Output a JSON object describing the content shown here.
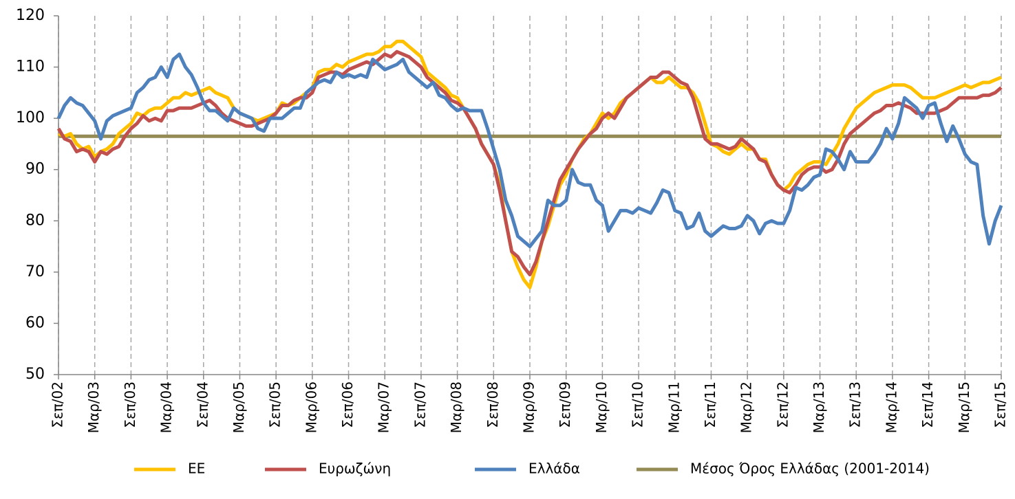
{
  "chart_data": {
    "type": "line",
    "categories": [
      "Σεπ/02",
      null,
      null,
      null,
      null,
      null,
      "Μαρ/03",
      null,
      null,
      null,
      null,
      null,
      "Σεπ/03",
      null,
      null,
      null,
      null,
      null,
      "Μαρ/04",
      null,
      null,
      null,
      null,
      null,
      "Σεπ/04",
      null,
      null,
      null,
      null,
      null,
      "Μαρ/05",
      null,
      null,
      null,
      null,
      null,
      "Σεπ/05",
      null,
      null,
      null,
      null,
      null,
      "Μαρ/06",
      null,
      null,
      null,
      null,
      null,
      "Σεπ/06",
      null,
      null,
      null,
      null,
      null,
      "Μαρ/07",
      null,
      null,
      null,
      null,
      null,
      "Σεπ/07",
      null,
      null,
      null,
      null,
      null,
      "Μαρ/08",
      null,
      null,
      null,
      null,
      null,
      "Σεπ/08",
      null,
      null,
      null,
      null,
      null,
      "Μαρ/09",
      null,
      null,
      null,
      null,
      null,
      "Σεπ/09",
      null,
      null,
      null,
      null,
      null,
      "Μαρ/10",
      null,
      null,
      null,
      null,
      null,
      "Σεπ/10",
      null,
      null,
      null,
      null,
      null,
      "Μαρ/11",
      null,
      null,
      null,
      null,
      null,
      "Σεπ/11",
      null,
      null,
      null,
      null,
      null,
      "Μαρ/12",
      null,
      null,
      null,
      null,
      null,
      "Σεπ/12",
      null,
      null,
      null,
      null,
      null,
      "Μαρ/13",
      null,
      null,
      null,
      null,
      null,
      "Σεπ/13",
      null,
      null,
      null,
      null,
      null,
      "Μαρ/14",
      null,
      null,
      null,
      null,
      null,
      "Σεπ/14",
      null,
      null,
      null,
      null,
      null,
      "Μαρ/15",
      null,
      null,
      null,
      null,
      null,
      "Σεπ/15"
    ],
    "series": [
      {
        "name": "ΕΕ",
        "color": "#FFC000",
        "values": [
          97,
          96.5,
          97,
          95,
          94,
          94.5,
          92.5,
          93.5,
          94,
          95,
          97,
          98,
          99,
          101,
          100.5,
          101.5,
          102,
          102,
          103,
          104,
          104,
          105,
          104.5,
          105,
          105.5,
          106,
          105,
          104.5,
          104,
          102,
          101,
          100.5,
          100,
          99.5,
          100,
          100.5,
          101,
          103,
          102.5,
          103,
          104,
          105,
          106,
          109,
          109.5,
          109.5,
          110.5,
          110,
          111,
          111.5,
          112,
          112.5,
          112.5,
          113,
          114,
          114,
          115,
          115,
          114,
          113,
          112,
          109,
          108,
          107,
          106,
          104.5,
          104,
          102,
          100,
          98,
          95,
          93,
          91,
          87,
          80,
          74,
          71,
          68.5,
          67,
          71,
          76,
          79,
          83,
          87,
          89,
          92,
          94,
          96,
          97,
          99,
          101,
          100,
          101,
          103,
          104,
          105,
          106,
          107,
          108,
          107,
          107,
          108,
          107,
          106,
          106,
          105,
          103,
          99,
          95,
          94.5,
          93.5,
          93,
          94,
          95,
          94,
          94,
          92,
          92,
          89,
          87,
          86,
          87,
          89,
          90,
          91,
          91.5,
          91.5,
          91,
          93,
          95,
          98,
          100,
          102,
          103,
          104,
          105,
          105.5,
          106,
          106.5,
          106.5,
          106.5,
          106,
          105,
          104,
          104,
          104,
          104.5,
          105,
          105.5,
          106,
          106.5,
          106,
          106.5,
          107,
          107,
          107.5,
          108
        ]
      },
      {
        "name": "Ευρωζώνη",
        "color": "#C0504D",
        "values": [
          98,
          96,
          95.5,
          93.5,
          94,
          93.5,
          91.5,
          93.5,
          93,
          94,
          94.5,
          96.5,
          98,
          99,
          100.5,
          99.5,
          100,
          99.5,
          101.5,
          101.5,
          102,
          102,
          102,
          102.5,
          103,
          103.5,
          102.5,
          101,
          100,
          99.5,
          99,
          98.5,
          98.5,
          99,
          99.5,
          100,
          101,
          102.5,
          102.5,
          103.5,
          104,
          104,
          105,
          108,
          108.5,
          109,
          109,
          108.5,
          109.5,
          110,
          110.5,
          111,
          110.5,
          111.5,
          112.5,
          112,
          113,
          112.5,
          112,
          111,
          110,
          108,
          107,
          106,
          105,
          103.5,
          103,
          102,
          100,
          98,
          95,
          93,
          91,
          86,
          80,
          74,
          73,
          71,
          69.5,
          72,
          76,
          80,
          84,
          88,
          90,
          92,
          94,
          95.5,
          97,
          98,
          100,
          101,
          100,
          102,
          104,
          105,
          106,
          107,
          108,
          108,
          109,
          109,
          108,
          107,
          106.5,
          104,
          100,
          96,
          95,
          95,
          94.5,
          94,
          94.5,
          96,
          95,
          94,
          92,
          91.5,
          89,
          87,
          86,
          85.5,
          87,
          89,
          90,
          90.5,
          90.5,
          89.5,
          90,
          92,
          95,
          97,
          98,
          99,
          100,
          101,
          101.5,
          102.5,
          102.5,
          103,
          102.5,
          102,
          101,
          101,
          101,
          101,
          101.5,
          102,
          103,
          104,
          104,
          104,
          104,
          104.5,
          104.5,
          105,
          106
        ]
      },
      {
        "name": "Ελλάδα",
        "color": "#4F81BD",
        "values": [
          100,
          102.5,
          104,
          103,
          102.5,
          101,
          99.5,
          96,
          99.5,
          100.5,
          101,
          101.5,
          102,
          105,
          106,
          107.5,
          108,
          110,
          108,
          111.5,
          112.5,
          110,
          108.5,
          106,
          103,
          101.5,
          101.5,
          100.5,
          99.5,
          102,
          101,
          100.5,
          100,
          98,
          97.5,
          100,
          100,
          100,
          101,
          102,
          102,
          105,
          106,
          107,
          107.5,
          107,
          109,
          108,
          108.5,
          108,
          108.5,
          108,
          111.5,
          110.5,
          109.5,
          110,
          110.5,
          111.5,
          109,
          108,
          107,
          106,
          107,
          104.5,
          104,
          102.5,
          101.5,
          102,
          101.5,
          101.5,
          101.5,
          98,
          94,
          90,
          84,
          81,
          77,
          76,
          75,
          76.5,
          78,
          84,
          83,
          83,
          84,
          90,
          87.5,
          87,
          87,
          84,
          83,
          78,
          80,
          82,
          82,
          81.5,
          82.5,
          82,
          81.5,
          83.5,
          86,
          85.5,
          82,
          81.5,
          78.5,
          79,
          81.5,
          78,
          77,
          78,
          79,
          78.5,
          78.5,
          79,
          81,
          80,
          77.5,
          79.5,
          80,
          79.5,
          79.5,
          82,
          86.5,
          86,
          87,
          88.5,
          89,
          94,
          93.5,
          92,
          90,
          93.5,
          91.5,
          91.5,
          91.5,
          93,
          95,
          98,
          96,
          99,
          104,
          103,
          102,
          100,
          102.5,
          103,
          99,
          95.5,
          98.5,
          96,
          93,
          91.5,
          91,
          81,
          75.5,
          80,
          83
        ]
      }
    ],
    "reference_line": {
      "name": "Μέσος Όρος Ελλάδας (2001-2014)",
      "color": "#948A54",
      "value": 96.5
    },
    "ylim": [
      50,
      120
    ],
    "yticks": [
      50,
      60,
      70,
      80,
      90,
      100,
      110,
      120
    ],
    "grid": "x-dashed",
    "legend": "bottom"
  }
}
